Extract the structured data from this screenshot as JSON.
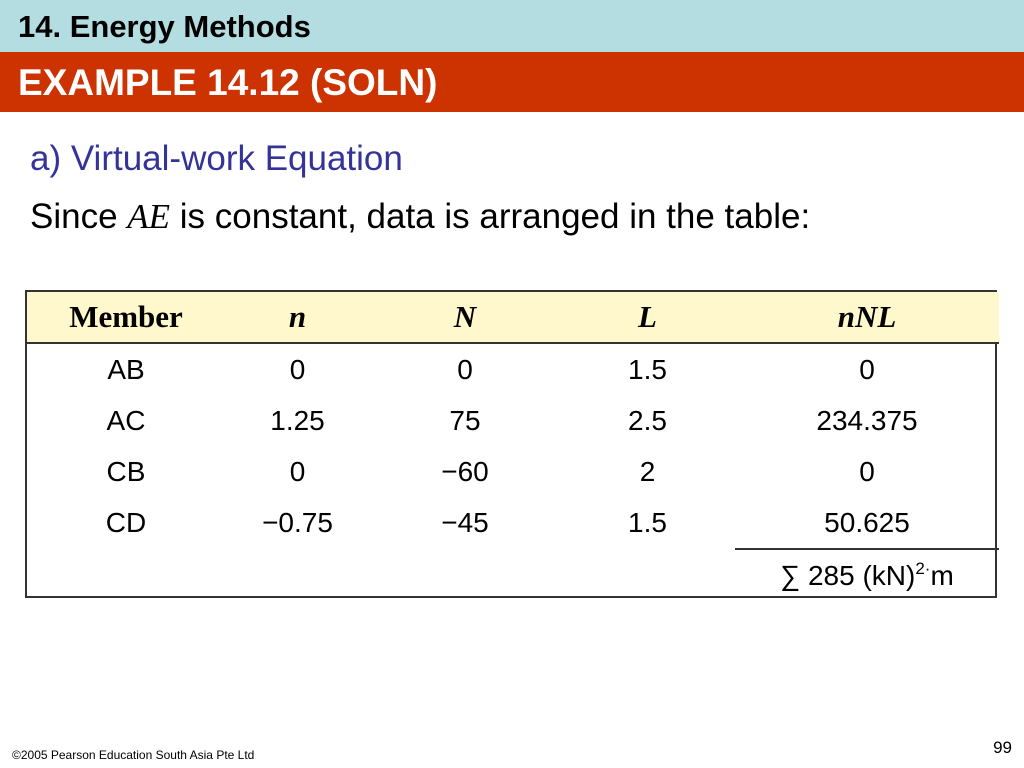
{
  "header": {
    "chapter": "14. Energy Methods",
    "example": "EXAMPLE 14.12 (SOLN)"
  },
  "content": {
    "subheading": "a) Virtual-work Equation",
    "line_prefix": "Since ",
    "line_var": "AE",
    "line_suffix": " is constant, data is arranged in the table:"
  },
  "table": {
    "headers": [
      "Member",
      "n",
      "N",
      "L",
      "nNL"
    ],
    "rows": [
      [
        "AB",
        "0",
        "0",
        "1.5",
        "0"
      ],
      [
        "AC",
        "1.25",
        "75",
        "2.5",
        "234.375"
      ],
      [
        "CB",
        "0",
        "−60",
        "2",
        "0"
      ],
      [
        "CD",
        "−0.75",
        "−45",
        "1.5",
        "50.625"
      ]
    ],
    "sum": {
      "prefix": "∑ 285 (kN)",
      "exponent": "2·",
      "unit": "m"
    }
  },
  "footer": {
    "copyright": "©2005 Pearson Education South Asia Pte Ltd",
    "page": "99"
  },
  "colors": {
    "chapter_bar": "#b3dde0",
    "example_bar": "#cc3300",
    "subheading": "#333399",
    "table_header_bg": "#fff8cc"
  }
}
